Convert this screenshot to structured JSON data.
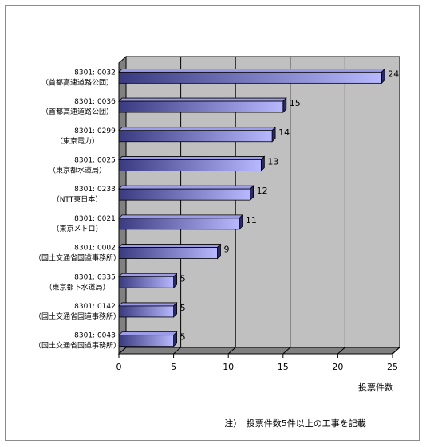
{
  "chart_data": {
    "type": "bar",
    "orientation": "horizontal",
    "categories": [
      [
        "8301: 0032",
        "（首都高速道路公団）"
      ],
      [
        "8301: 0036",
        "（首都高速道路公団）"
      ],
      [
        "8301: 0299",
        "（東京電力）"
      ],
      [
        "8301: 0025",
        "（東京都水道局）"
      ],
      [
        "8301: 0233",
        "（NTT東日本）"
      ],
      [
        "8301: 0021",
        "（東京メトロ）"
      ],
      [
        "8301: 0002",
        "（国土交通省国道事務所）"
      ],
      [
        "8301: 0335",
        "（東京都下水道局）"
      ],
      [
        "8301: 0142",
        "（国土交通省国道事務所）"
      ],
      [
        "8301: 0043",
        "（国土交通省国道事務所）"
      ]
    ],
    "values": [
      24,
      15,
      14,
      13,
      12,
      11,
      9,
      5,
      5,
      5
    ],
    "xticks": [
      "0",
      "5",
      "10",
      "15",
      "20",
      "25"
    ],
    "xlim": [
      0,
      25
    ],
    "xlabel": "投票件数",
    "note": "注）　投票件数5件以上の工事を記載",
    "grid": true,
    "style": "3d",
    "colors": {
      "bar_light": "#b8b8ff",
      "bar_dark": "#3a3a80",
      "wall": "#c0c0c0",
      "floor": "#808080"
    }
  }
}
